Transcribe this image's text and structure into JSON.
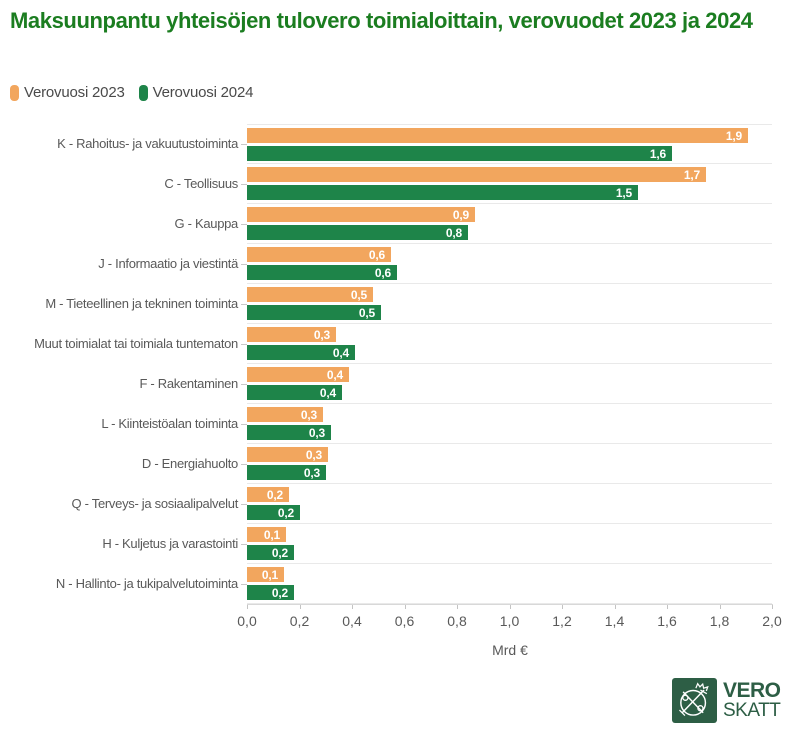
{
  "chart_data": {
    "type": "bar",
    "orientation": "horizontal",
    "title": "Maksuunpantu yhteisöjen tulovero toimialoittain, verovuodet 2023 ja 2024",
    "xlabel": "Mrd €",
    "xlim": [
      0,
      2.0
    ],
    "xticks": [
      "0,0",
      "0,2",
      "0,4",
      "0,6",
      "0,8",
      "1,0",
      "1,2",
      "1,4",
      "1,6",
      "1,8",
      "2,0"
    ],
    "grid": "horizontal-row-separators-only",
    "legend_position": "top-left",
    "categories": [
      "K - Rahoitus- ja vakuutustoiminta",
      "C - Teollisuus",
      "G - Kauppa",
      "J - Informaatio ja viestintä",
      "M - Tieteellinen ja tekninen toiminta",
      "Muut toimialat tai toimiala tuntematon",
      "F - Rakentaminen",
      "L - Kiinteistöalan toiminta",
      "D - Energiahuolto",
      "Q - Terveys- ja sosiaalipalvelut",
      "H - Kuljetus ja varastointi",
      "N - Hallinto- ja tukipalvelutoiminta"
    ],
    "series": [
      {
        "name": "Verovuosi 2023",
        "color": "#F2A65E",
        "values": [
          1.9,
          1.7,
          0.9,
          0.6,
          0.5,
          0.3,
          0.4,
          0.3,
          0.3,
          0.2,
          0.1,
          0.1
        ],
        "labels": [
          "1,9",
          "1,7",
          "0,9",
          "0,6",
          "0,5",
          "0,3",
          "0,4",
          "0,3",
          "0,3",
          "0,2",
          "0,1",
          "0,1"
        ],
        "bar_fractions": [
          1.91,
          1.75,
          0.87,
          0.55,
          0.48,
          0.34,
          0.39,
          0.29,
          0.31,
          0.16,
          0.15,
          0.14
        ]
      },
      {
        "name": "Verovuosi 2024",
        "color": "#1E8449",
        "values": [
          1.6,
          1.5,
          0.8,
          0.6,
          0.5,
          0.4,
          0.4,
          0.3,
          0.3,
          0.2,
          0.2,
          0.2
        ],
        "labels": [
          "1,6",
          "1,5",
          "0,8",
          "0,6",
          "0,5",
          "0,4",
          "0,4",
          "0,3",
          "0,3",
          "0,2",
          "0,2",
          "0,2"
        ],
        "bar_fractions": [
          1.62,
          1.49,
          0.84,
          0.57,
          0.51,
          0.41,
          0.36,
          0.32,
          0.3,
          0.2,
          0.18,
          0.18
        ]
      }
    ]
  },
  "logo": {
    "line1": "VERO",
    "line2": "SKATT",
    "color": "#2D5E45"
  },
  "colors": {
    "title_green": "#1B7D20",
    "bar_orange": "#F2A65E",
    "bar_green": "#1E8449",
    "logo_green": "#2D5E45",
    "text_grey": "#595959",
    "separator_grey": "#E9E9E9",
    "axis_grey": "#D8D8D8"
  }
}
